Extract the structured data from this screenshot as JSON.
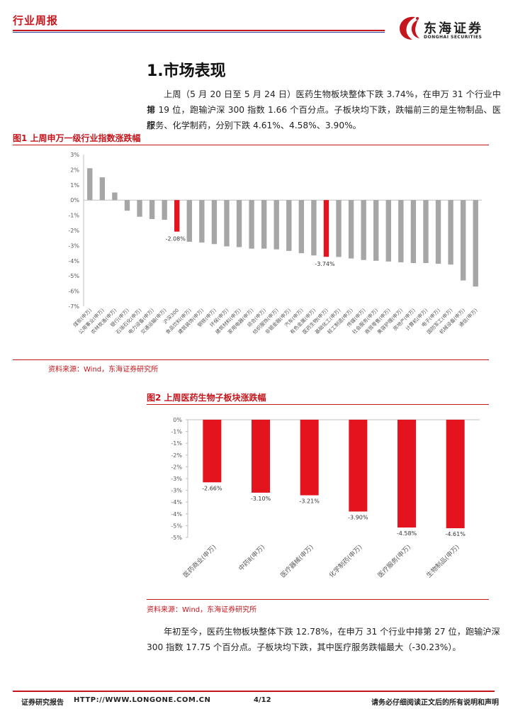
{
  "header": {
    "tag": "行业周报",
    "logo_cn": "东海证券",
    "logo_en": "DONGHAI SECURITIES"
  },
  "section": {
    "title": "1.市场表现",
    "para1_line1": "上周（5 月 20 日至 5 月 24 日）医药生物板块整体下跌 3.74%，在申万 31 个行业中排",
    "para1_line2": "第 19 位，跑输沪深 300 指数 1.66 个百分点。子板块均下跌，跌幅前三的是生物制品、医疗",
    "para1_line3": "服务、化学制药，分别下跌 4.61%、4.58%、3.90%。",
    "para2_line1": "年初至今，医药生物板块整体下跌 12.78%，在申万 31 个行业中排第 27 位，跑输沪深",
    "para2_line2": "300 指数 17.75 个百分点。子板块均下跌，其中医疗服务跌幅最大（-30.23%）。"
  },
  "fig1": {
    "title": "图1  上周申万一级行业指数涨跌幅",
    "source": "资料来源：Wind，东海证券研究所"
  },
  "fig2": {
    "title": "图2  上周医药生物子板块涨跌幅",
    "source": "资料来源：Wind，东海证券研究所"
  },
  "footer": {
    "left": "证券研究报告",
    "url": "HTTP://WWW.LONGONE.COM.CN",
    "page": "4/12",
    "right": "请务必仔细阅读正文后的所有说明和声明"
  },
  "colors": {
    "accent": "#c4161c",
    "gray_bar": "#a6a6a6",
    "red_bar": "#e4141e",
    "navy": "#1f3f8f"
  },
  "chart_data": [
    {
      "type": "bar",
      "categories": [
        "煤炭(申万)",
        "公用事业(申万)",
        "农林牧渔(申万)",
        "银行(申万)",
        "石油石化(申万)",
        "电力设备(申万)",
        "交通运输(申万)",
        "沪深300",
        "食品饮料(申万)",
        "建筑装饰(申万)",
        "钢铁(申万)",
        "环保(申万)",
        "建筑材料(申万)",
        "家用电器(申万)",
        "综合(申万)",
        "纺织服饰(申万)",
        "非银金融(申万)",
        "汽车(申万)",
        "有色金属(申万)",
        "医药生物(申万)",
        "基础化工(申万)",
        "轻工制造(申万)",
        "传媒(申万)",
        "社会服务(申万)",
        "商贸零售(申万)",
        "美容护理(申万)",
        "房地产(申万)",
        "计算机(申万)",
        "电子(申万)",
        "国防军工(申万)",
        "机械设备(申万)",
        "通信(申万)"
      ],
      "values": [
        2.1,
        1.5,
        0.5,
        -0.7,
        -1.1,
        -1.25,
        -1.3,
        -2.08,
        -2.75,
        -2.8,
        -2.9,
        -3.05,
        -3.1,
        -3.2,
        -3.2,
        -3.25,
        -3.35,
        -3.5,
        -3.65,
        -3.74,
        -3.75,
        -3.85,
        -3.95,
        -4.0,
        -4.05,
        -4.1,
        -4.15,
        -4.15,
        -4.2,
        -4.25,
        -5.3,
        -5.7
      ],
      "highlight": [
        "沪深300",
        "医药生物(申万)"
      ],
      "data_labels": [
        {
          "category": "沪深300",
          "label": "-2.08%"
        },
        {
          "category": "医药生物(申万)",
          "label": "-3.74%"
        }
      ],
      "yticks": [
        "3%",
        "2%",
        "1%",
        "0%",
        "-1%",
        "-2%",
        "-3%",
        "-4%",
        "-5%",
        "-6%",
        "-7%"
      ],
      "ylim": [
        -7,
        3
      ],
      "grid": false
    },
    {
      "type": "bar",
      "categories": [
        "医药商业(申万)",
        "中药Ⅱ(申万)",
        "医疗器械(申万)",
        "化学制药(申万)",
        "医疗服务(申万)",
        "生物制品(申万)"
      ],
      "values": [
        -2.66,
        -3.1,
        -3.21,
        -3.9,
        -4.58,
        -4.61
      ],
      "data_labels": [
        "-2.66%",
        "-3.10%",
        "-3.21%",
        "-3.90%",
        "-4.58%",
        "-4.61%"
      ],
      "yticks": [
        "0%",
        "-1%",
        "-1%",
        "-2%",
        "-2%",
        "-3%",
        "-3%",
        "-4%",
        "-4%",
        "-5%",
        "-5%"
      ],
      "ylim": [
        -5,
        0
      ],
      "grid": false
    }
  ]
}
